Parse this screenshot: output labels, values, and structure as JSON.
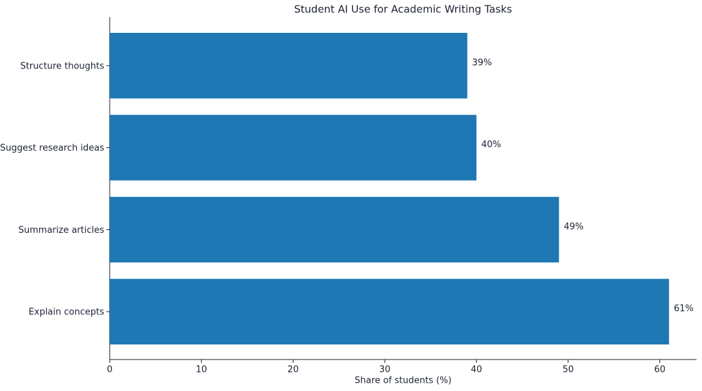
{
  "chart_data": {
    "type": "barh",
    "title": "Student AI Use for Academic Writing Tasks",
    "x_label": "Share of students (%)",
    "categories": [
      "Structure thoughts",
      "Suggest research ideas",
      "Summarize articles",
      "Explain concepts"
    ],
    "values": [
      39,
      40,
      49,
      61
    ],
    "value_labels": [
      "39%",
      "40%",
      "49%",
      "61%"
    ],
    "color": "#1f77b4",
    "xlim": [
      0,
      64
    ],
    "xticks": [
      0,
      10,
      20,
      30,
      40,
      50,
      60
    ]
  }
}
